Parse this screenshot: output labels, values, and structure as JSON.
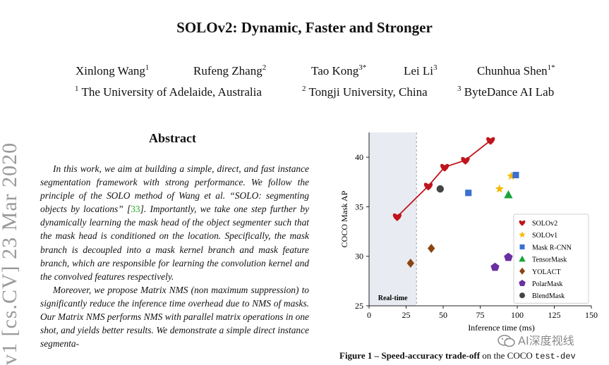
{
  "paper": {
    "title": "SOLOv2: Dynamic, Faster and Stronger",
    "authors": [
      {
        "name": "Xinlong Wang",
        "sup": "1"
      },
      {
        "name": "Rufeng Zhang",
        "sup": "2"
      },
      {
        "name": "Tao Kong",
        "sup": "3*"
      },
      {
        "name": "Lei Li",
        "sup": "3"
      },
      {
        "name": "Chunhua Shen",
        "sup": "1*"
      }
    ],
    "affiliations": [
      {
        "sup": "1",
        "name": "The University of Adelaide, Australia"
      },
      {
        "sup": "2",
        "name": "Tongji University, China"
      },
      {
        "sup": "3",
        "name": "ByteDance AI Lab"
      }
    ],
    "arxiv_stamp": "v1 [cs.CV] 23 Mar 2020",
    "abstract": {
      "heading": "Abstract",
      "p1_a": "In this work, we aim at building a simple, direct, and fast instance segmentation framework with strong performance. We follow the principle of the SOLO method of Wang et al. “SOLO: segmenting objects by locations” [",
      "p1_cite": "33",
      "p1_b": "]. Importantly, we take one step further by dynamically learning the mask head of the object segmenter such that the mask head is conditioned on the location. Specifically, the mask branch is decoupled into a mask kernel branch and mask feature branch, which are responsible for learning the convolution kernel and the convolved features respectively.",
      "p2": "Moreover, we propose Matrix NMS (non maximum suppression) to significantly reduce the inference time overhead due to NMS of masks. Our Matrix NMS performs NMS with parallel matrix operations in one shot, and yields better results. We demonstrate a simple direct instance segmenta-"
    },
    "caption": {
      "prefix": "Figure 1 – Speed-accuracy trade-off",
      "middle": " on the COCO ",
      "mono": "test-dev"
    }
  },
  "watermark": "AI深度视线",
  "chart_data": {
    "type": "scatter",
    "xlabel": "Inference time (ms)",
    "ylabel": "COCO Mask AP",
    "xlim": [
      0,
      150
    ],
    "ylim": [
      25,
      42.5
    ],
    "xticks": [
      0,
      25,
      50,
      75,
      100,
      125,
      150
    ],
    "yticks": [
      25,
      30,
      35,
      40
    ],
    "realtime_label": "Real-time",
    "realtime_cutoff": 32,
    "legend_position": "lower-right",
    "series": [
      {
        "name": "SOLOv2",
        "marker": "heart",
        "color": "#c0141c",
        "line": true,
        "points": [
          [
            19,
            34.0
          ],
          [
            40,
            37.1
          ],
          [
            51,
            39.0
          ],
          [
            65,
            39.7
          ],
          [
            82,
            41.7
          ]
        ]
      },
      {
        "name": "SOLOv1",
        "marker": "star",
        "color": "#f5b800",
        "points": [
          [
            88,
            36.8
          ],
          [
            96,
            38.1
          ]
        ]
      },
      {
        "name": "Mask R-CNN",
        "marker": "square",
        "color": "#3b6fd0",
        "points": [
          [
            67,
            36.4
          ],
          [
            99,
            38.2
          ]
        ]
      },
      {
        "name": "TensorMask",
        "marker": "triangle",
        "color": "#1aa53a",
        "points": [
          [
            94,
            36.2
          ]
        ]
      },
      {
        "name": "YOLACT",
        "marker": "diamond",
        "color": "#8b4513",
        "points": [
          [
            28,
            29.3
          ],
          [
            42,
            30.8
          ]
        ]
      },
      {
        "name": "PolarMask",
        "marker": "pentagon",
        "color": "#6a2fa0",
        "points": [
          [
            85,
            28.9
          ],
          [
            94,
            29.9
          ]
        ]
      },
      {
        "name": "BlendMask",
        "marker": "circle",
        "color": "#444444",
        "points": [
          [
            48,
            36.8
          ]
        ]
      }
    ]
  }
}
